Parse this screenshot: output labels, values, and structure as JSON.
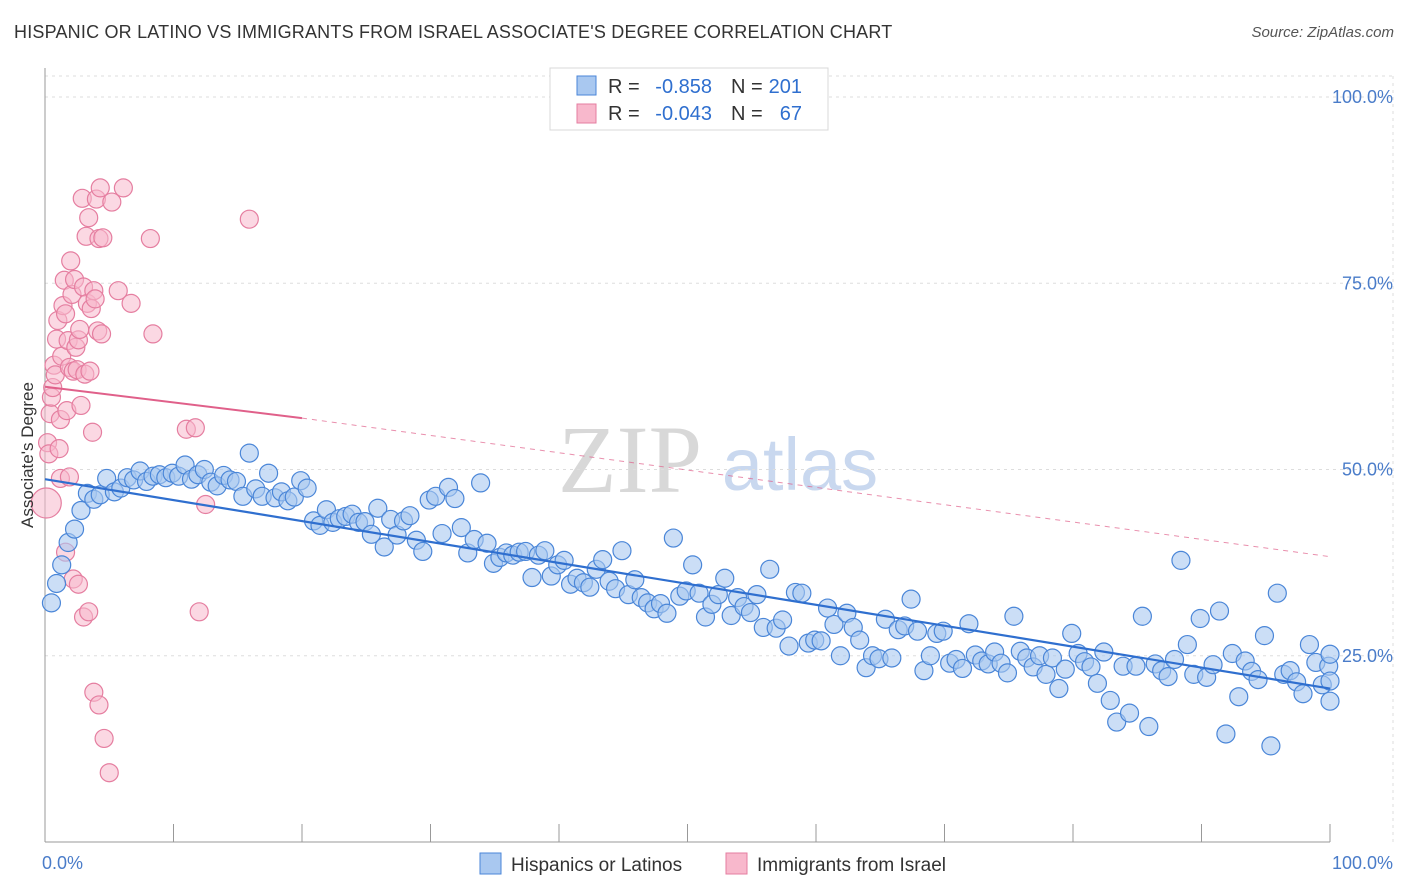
{
  "title": "HISPANIC OR LATINO VS IMMIGRANTS FROM ISRAEL ASSOCIATE'S DEGREE CORRELATION CHART",
  "source": "Source: ZipAtlas.com",
  "chart_data": {
    "type": "scatter",
    "title": "HISPANIC OR LATINO VS IMMIGRANTS FROM ISRAEL ASSOCIATE'S DEGREE CORRELATION CHART",
    "ylabel": "Associate's Degree",
    "xlim": [
      0,
      100
    ],
    "ylim": [
      0,
      100
    ],
    "x_tick_labels": [
      "0.0%",
      "100.0%"
    ],
    "y_tick_labels": [
      "25.0%",
      "50.0%",
      "75.0%",
      "100.0%"
    ],
    "y_ticks": [
      25,
      50,
      75,
      100
    ],
    "watermark": {
      "zip": "ZIP",
      "atlas": "atlas"
    },
    "grid": true,
    "legend_position": "top-center",
    "colors": {
      "blue_fill": "#a9c8f0",
      "blue_stroke": "#4a86d8",
      "blue_line": "#2f6fcf",
      "pink_fill": "#f8b8cc",
      "pink_stroke": "#e57ea0",
      "pink_line": "#e0608a",
      "text_blue": "#2f6fcf"
    },
    "stats_legend": [
      {
        "r_label": "R =",
        "r_value": "-0.858",
        "n_label": "N =",
        "n_value": "201"
      },
      {
        "r_label": "R =",
        "r_value": "-0.043",
        "n_label": "N =",
        "n_value": "67"
      }
    ],
    "series": [
      {
        "name": "Hispanics or Latinos",
        "trend": {
          "x0": 0,
          "y0": 48.7,
          "x1": 100,
          "y1": 20.6
        },
        "points": [
          [
            0.5,
            32.1
          ],
          [
            0.9,
            34.7
          ],
          [
            1.3,
            37.2
          ],
          [
            1.8,
            40.2
          ],
          [
            2.3,
            42.0
          ],
          [
            2.8,
            44.5
          ],
          [
            3.3,
            46.8
          ],
          [
            3.8,
            46.0
          ],
          [
            4.3,
            46.6
          ],
          [
            4.8,
            48.8
          ],
          [
            5.4,
            47.0
          ],
          [
            5.9,
            47.5
          ],
          [
            6.4,
            48.9
          ],
          [
            6.9,
            48.6
          ],
          [
            7.4,
            49.8
          ],
          [
            7.9,
            48.4
          ],
          [
            8.4,
            49.1
          ],
          [
            8.9,
            49.3
          ],
          [
            9.4,
            48.9
          ],
          [
            9.9,
            49.5
          ],
          [
            10.4,
            49.1
          ],
          [
            10.9,
            50.6
          ],
          [
            11.4,
            48.7
          ],
          [
            11.9,
            49.3
          ],
          [
            12.4,
            50.0
          ],
          [
            12.9,
            48.3
          ],
          [
            13.4,
            47.8
          ],
          [
            13.9,
            49.2
          ],
          [
            14.4,
            48.6
          ],
          [
            14.9,
            48.4
          ],
          [
            15.4,
            46.4
          ],
          [
            15.9,
            52.2
          ],
          [
            16.4,
            47.4
          ],
          [
            16.9,
            46.4
          ],
          [
            17.4,
            49.5
          ],
          [
            17.9,
            46.2
          ],
          [
            18.4,
            47.0
          ],
          [
            18.9,
            45.8
          ],
          [
            19.4,
            46.3
          ],
          [
            19.9,
            48.5
          ],
          [
            20.4,
            47.5
          ],
          [
            20.9,
            43.1
          ],
          [
            21.4,
            42.5
          ],
          [
            21.9,
            44.6
          ],
          [
            22.4,
            42.9
          ],
          [
            22.9,
            43.4
          ],
          [
            23.4,
            43.7
          ],
          [
            23.9,
            44.0
          ],
          [
            24.4,
            42.9
          ],
          [
            24.9,
            43.0
          ],
          [
            25.4,
            41.3
          ],
          [
            25.9,
            44.8
          ],
          [
            26.4,
            39.6
          ],
          [
            26.9,
            43.3
          ],
          [
            27.4,
            41.2
          ],
          [
            27.9,
            43.1
          ],
          [
            28.4,
            43.8
          ],
          [
            28.9,
            40.5
          ],
          [
            29.4,
            39.0
          ],
          [
            29.9,
            45.9
          ],
          [
            30.4,
            46.4
          ],
          [
            30.9,
            41.4
          ],
          [
            31.4,
            47.6
          ],
          [
            31.9,
            46.1
          ],
          [
            32.4,
            42.2
          ],
          [
            32.9,
            38.8
          ],
          [
            33.4,
            40.6
          ],
          [
            33.9,
            48.2
          ],
          [
            34.4,
            40.1
          ],
          [
            34.9,
            37.4
          ],
          [
            35.4,
            38.2
          ],
          [
            35.9,
            38.8
          ],
          [
            36.4,
            38.5
          ],
          [
            36.9,
            38.9
          ],
          [
            37.4,
            39.0
          ],
          [
            37.9,
            35.5
          ],
          [
            38.4,
            38.5
          ],
          [
            38.9,
            39.1
          ],
          [
            39.4,
            35.7
          ],
          [
            39.9,
            37.2
          ],
          [
            40.4,
            37.8
          ],
          [
            40.9,
            34.6
          ],
          [
            41.4,
            35.4
          ],
          [
            41.9,
            34.8
          ],
          [
            42.4,
            34.2
          ],
          [
            42.9,
            36.6
          ],
          [
            43.4,
            37.9
          ],
          [
            43.9,
            35.0
          ],
          [
            44.4,
            34.0
          ],
          [
            44.9,
            39.1
          ],
          [
            45.4,
            33.2
          ],
          [
            45.9,
            35.2
          ],
          [
            46.4,
            32.8
          ],
          [
            46.9,
            32.1
          ],
          [
            47.4,
            31.3
          ],
          [
            47.9,
            32.0
          ],
          [
            48.4,
            30.7
          ],
          [
            48.9,
            40.8
          ],
          [
            49.4,
            33.0
          ],
          [
            49.9,
            33.7
          ],
          [
            50.4,
            37.2
          ],
          [
            50.9,
            33.4
          ],
          [
            51.4,
            30.2
          ],
          [
            51.9,
            31.9
          ],
          [
            52.4,
            33.2
          ],
          [
            52.9,
            35.4
          ],
          [
            53.4,
            30.4
          ],
          [
            53.9,
            32.8
          ],
          [
            54.4,
            31.6
          ],
          [
            54.9,
            30.8
          ],
          [
            55.4,
            33.2
          ],
          [
            55.9,
            28.8
          ],
          [
            56.4,
            36.6
          ],
          [
            56.9,
            28.7
          ],
          [
            57.4,
            29.8
          ],
          [
            57.9,
            26.3
          ],
          [
            58.4,
            33.5
          ],
          [
            58.9,
            33.4
          ],
          [
            59.4,
            26.7
          ],
          [
            59.9,
            27.1
          ],
          [
            60.4,
            27.0
          ],
          [
            60.9,
            31.4
          ],
          [
            61.4,
            29.2
          ],
          [
            61.9,
            25.0
          ],
          [
            62.4,
            30.7
          ],
          [
            62.9,
            28.8
          ],
          [
            63.4,
            27.1
          ],
          [
            63.9,
            23.4
          ],
          [
            64.4,
            25.0
          ],
          [
            64.9,
            24.6
          ],
          [
            65.4,
            29.9
          ],
          [
            65.9,
            24.7
          ],
          [
            66.4,
            28.5
          ],
          [
            66.9,
            29.0
          ],
          [
            67.4,
            32.6
          ],
          [
            67.9,
            28.3
          ],
          [
            68.4,
            23.0
          ],
          [
            68.9,
            25.0
          ],
          [
            69.4,
            28.0
          ],
          [
            69.9,
            28.3
          ],
          [
            70.4,
            24.0
          ],
          [
            70.9,
            24.5
          ],
          [
            71.4,
            23.3
          ],
          [
            71.9,
            29.3
          ],
          [
            72.4,
            25.1
          ],
          [
            72.9,
            24.3
          ],
          [
            73.4,
            23.9
          ],
          [
            73.9,
            25.5
          ],
          [
            74.4,
            24.0
          ],
          [
            74.9,
            22.7
          ],
          [
            75.4,
            30.3
          ],
          [
            75.9,
            25.6
          ],
          [
            76.4,
            24.7
          ],
          [
            76.9,
            23.5
          ],
          [
            77.4,
            25.0
          ],
          [
            77.9,
            22.5
          ],
          [
            78.4,
            24.7
          ],
          [
            78.9,
            20.6
          ],
          [
            79.4,
            23.2
          ],
          [
            79.9,
            28.0
          ],
          [
            80.4,
            25.3
          ],
          [
            80.9,
            24.2
          ],
          [
            81.4,
            23.5
          ],
          [
            81.9,
            21.3
          ],
          [
            82.4,
            25.5
          ],
          [
            82.9,
            19.0
          ],
          [
            83.4,
            16.1
          ],
          [
            83.9,
            23.6
          ],
          [
            84.4,
            17.3
          ],
          [
            84.9,
            23.6
          ],
          [
            85.4,
            30.3
          ],
          [
            85.9,
            15.5
          ],
          [
            86.4,
            23.9
          ],
          [
            86.9,
            23.0
          ],
          [
            87.4,
            22.2
          ],
          [
            87.9,
            24.5
          ],
          [
            88.4,
            37.8
          ],
          [
            88.9,
            26.5
          ],
          [
            89.4,
            22.5
          ],
          [
            89.9,
            30.0
          ],
          [
            90.4,
            22.1
          ],
          [
            90.9,
            23.8
          ],
          [
            91.4,
            31.0
          ],
          [
            91.9,
            14.5
          ],
          [
            92.4,
            25.3
          ],
          [
            92.9,
            19.5
          ],
          [
            93.4,
            24.3
          ],
          [
            93.9,
            22.9
          ],
          [
            94.4,
            21.8
          ],
          [
            94.9,
            27.7
          ],
          [
            95.4,
            12.9
          ],
          [
            95.9,
            33.4
          ],
          [
            96.4,
            22.5
          ],
          [
            96.9,
            23.0
          ],
          [
            97.4,
            21.5
          ],
          [
            97.9,
            19.9
          ],
          [
            98.4,
            26.5
          ],
          [
            98.9,
            24.1
          ],
          [
            99.4,
            21.1
          ],
          [
            99.9,
            23.6
          ],
          [
            100.4,
            25.2
          ],
          [
            100.9,
            18.9
          ],
          [
            101.4,
            21.6
          ]
        ]
      },
      {
        "name": "Immigrants from Israel",
        "trend_solid": {
          "x0": 0,
          "y0": 61.1,
          "x1": 20,
          "y1": 56.9
        },
        "trend_dashed": {
          "x0": 20,
          "y0": 56.9,
          "x1": 100,
          "y1": 38.3
        },
        "points": [
          [
            0.1,
            45.5
          ],
          [
            0.2,
            53.6
          ],
          [
            0.3,
            52.1
          ],
          [
            0.4,
            57.5
          ],
          [
            0.5,
            59.7
          ],
          [
            0.6,
            61.0
          ],
          [
            0.7,
            64.0
          ],
          [
            0.8,
            62.7
          ],
          [
            0.9,
            67.5
          ],
          [
            1.0,
            70.0
          ],
          [
            1.1,
            52.8
          ],
          [
            1.2,
            56.7
          ],
          [
            1.3,
            65.2
          ],
          [
            1.4,
            72.0
          ],
          [
            1.5,
            75.4
          ],
          [
            1.6,
            70.9
          ],
          [
            1.7,
            57.9
          ],
          [
            1.8,
            67.3
          ],
          [
            1.9,
            63.7
          ],
          [
            2.0,
            78.0
          ],
          [
            2.1,
            73.5
          ],
          [
            2.2,
            63.2
          ],
          [
            2.3,
            75.5
          ],
          [
            2.4,
            66.4
          ],
          [
            2.5,
            63.4
          ],
          [
            2.6,
            67.4
          ],
          [
            2.7,
            68.8
          ],
          [
            2.8,
            58.6
          ],
          [
            2.9,
            86.4
          ],
          [
            3.0,
            74.5
          ],
          [
            3.1,
            62.8
          ],
          [
            3.2,
            81.3
          ],
          [
            3.3,
            72.3
          ],
          [
            3.4,
            83.8
          ],
          [
            3.5,
            63.2
          ],
          [
            3.6,
            71.6
          ],
          [
            3.7,
            55.0
          ],
          [
            3.8,
            74.0
          ],
          [
            3.9,
            72.9
          ],
          [
            4.0,
            86.3
          ],
          [
            4.1,
            68.6
          ],
          [
            4.2,
            81.0
          ],
          [
            4.3,
            87.8
          ],
          [
            4.4,
            68.2
          ],
          [
            4.5,
            81.1
          ],
          [
            1.2,
            48.8
          ],
          [
            1.6,
            38.9
          ],
          [
            1.9,
            49.0
          ],
          [
            2.2,
            35.3
          ],
          [
            2.6,
            34.6
          ],
          [
            3.0,
            30.2
          ],
          [
            3.4,
            30.9
          ],
          [
            3.8,
            20.1
          ],
          [
            4.2,
            18.4
          ],
          [
            4.6,
            13.9
          ],
          [
            5.0,
            9.3
          ],
          [
            11.0,
            55.4
          ],
          [
            11.7,
            55.6
          ],
          [
            12.5,
            45.3
          ],
          [
            12.0,
            30.9
          ],
          [
            15.9,
            83.6
          ],
          [
            8.4,
            68.2
          ],
          [
            8.2,
            81.0
          ],
          [
            6.1,
            87.8
          ],
          [
            5.2,
            85.9
          ],
          [
            5.7,
            74.0
          ],
          [
            6.7,
            72.3
          ]
        ]
      }
    ]
  },
  "bottom_legend": [
    {
      "label": "Hispanics or Latinos"
    },
    {
      "label": "Immigrants from Israel"
    }
  ]
}
